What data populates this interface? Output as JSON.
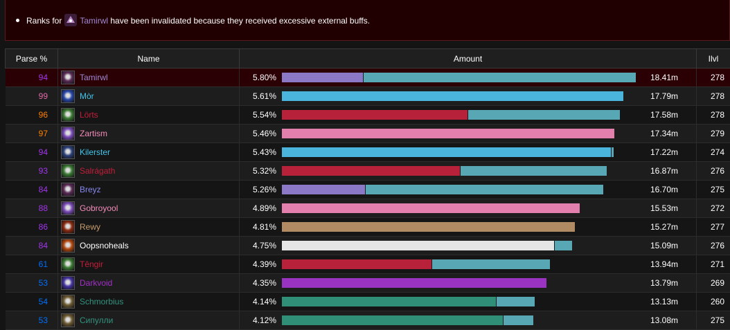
{
  "notice": {
    "prefix": "Ranks for",
    "player": "Tamirwl",
    "suffix": "have been invalidated because they received excessive external buffs."
  },
  "headers": {
    "parse": "Parse %",
    "name": "Name",
    "amount": "Amount",
    "ilvl": "Ilvl"
  },
  "colors": {
    "parse_purple": "#a335ee",
    "parse_pink": "#e268a8",
    "parse_orange": "#ff8000",
    "parse_blue": "#0070ff",
    "parse_orange2": "#ff8000",
    "mage": "#3fc7eb",
    "warlock": "#8788ee",
    "dh": "#a330c9",
    "dk": "#c41e3a",
    "evoker": "#33937f",
    "paladin": "#f48cba",
    "warrior": "#c69b6d",
    "priest": "#ffffff",
    "bar_secondary": "#58a7b4"
  },
  "rows": [
    {
      "parse": "94",
      "parse_color": "#a335ee",
      "icon": "spellbreaker-icon",
      "icon_color": "#5a2b57",
      "name": "Tamirwl",
      "name_color": "#a087d3",
      "pct": "5.80%",
      "primary_color": "#8b78c7",
      "primary_share": 0.23,
      "share": 0.954,
      "amount": "18.41m",
      "ilvl": "278",
      "flagged": true
    },
    {
      "parse": "99",
      "parse_color": "#e268a8",
      "icon": "frost-icon",
      "icon_color": "#2847a8",
      "name": "Mòr",
      "name_color": "#3fc7eb",
      "pct": "5.61%",
      "primary_color": "#4ab4dd",
      "primary_share": 1.0,
      "share": 0.922,
      "amount": "17.79m",
      "ilvl": "278"
    },
    {
      "parse": "96",
      "parse_color": "#ff8000",
      "icon": "skull-green-icon",
      "icon_color": "#3a7a32",
      "name": "Lörts",
      "name_color": "#c41e3a",
      "pct": "5.54%",
      "primary_color": "#b8213a",
      "primary_share": 0.55,
      "share": 0.911,
      "amount": "17.58m",
      "ilvl": "278"
    },
    {
      "parse": "97",
      "parse_color": "#ff8000",
      "icon": "purple-rune-icon",
      "icon_color": "#7a4bb8",
      "name": "Zartism",
      "name_color": "#f48cba",
      "pct": "5.46%",
      "primary_color": "#e27fad",
      "primary_share": 1.0,
      "share": 0.898,
      "amount": "17.34m",
      "ilvl": "279"
    },
    {
      "parse": "94",
      "parse_color": "#a335ee",
      "icon": "blade-icon",
      "icon_color": "#2b3f78",
      "name": "Kilerster",
      "name_color": "#3fc7eb",
      "pct": "5.43%",
      "primary_color": "#4ab4dd",
      "primary_share": 0.993,
      "share": 0.893,
      "amount": "17.22m",
      "ilvl": "274"
    },
    {
      "parse": "93",
      "parse_color": "#a335ee",
      "icon": "skull-green-icon",
      "icon_color": "#3a7a32",
      "name": "Salrágath",
      "name_color": "#c41e3a",
      "pct": "5.32%",
      "primary_color": "#b8213a",
      "primary_share": 0.55,
      "share": 0.874,
      "amount": "16.87m",
      "ilvl": "276"
    },
    {
      "parse": "84",
      "parse_color": "#a335ee",
      "icon": "spellbreaker-icon",
      "icon_color": "#5a2b57",
      "name": "Breyz",
      "name_color": "#8788ee",
      "pct": "5.26%",
      "primary_color": "#8b78c7",
      "primary_share": 0.26,
      "share": 0.865,
      "amount": "16.70m",
      "ilvl": "275"
    },
    {
      "parse": "88",
      "parse_color": "#a335ee",
      "icon": "purple-rune-icon",
      "icon_color": "#7a4bb8",
      "name": "Gobroyool",
      "name_color": "#f48cba",
      "pct": "4.89%",
      "primary_color": "#e27fad",
      "primary_share": 1.0,
      "share": 0.804,
      "amount": "15.53m",
      "ilvl": "272"
    },
    {
      "parse": "86",
      "parse_color": "#a335ee",
      "icon": "fury-icon",
      "icon_color": "#8a2a10",
      "name": "Rewy",
      "name_color": "#c69b6d",
      "pct": "4.81%",
      "primary_color": "#b08a62",
      "primary_share": 1.0,
      "share": 0.791,
      "amount": "15.27m",
      "ilvl": "277"
    },
    {
      "parse": "84",
      "parse_color": "#a335ee",
      "icon": "holy-icon",
      "icon_color": "#b34810",
      "name": "Oopsnoheals",
      "name_color": "#ffffff",
      "pct": "4.75%",
      "primary_color": "#e6e6e6",
      "primary_share": 0.94,
      "share": 0.781,
      "amount": "15.09m",
      "ilvl": "276"
    },
    {
      "parse": "61",
      "parse_color": "#0070ff",
      "icon": "skull-green-icon",
      "icon_color": "#3a7a32",
      "name": "Têngir",
      "name_color": "#c41e3a",
      "pct": "4.39%",
      "primary_color": "#b8213a",
      "primary_share": 0.56,
      "share": 0.722,
      "amount": "13.94m",
      "ilvl": "271"
    },
    {
      "parse": "53",
      "parse_color": "#0070ff",
      "icon": "void-icon",
      "icon_color": "#4433a0",
      "name": "Darkvoid",
      "name_color": "#a330c9",
      "pct": "4.35%",
      "primary_color": "#9b33c2",
      "primary_share": 1.0,
      "share": 0.714,
      "amount": "13.79m",
      "ilvl": "269"
    },
    {
      "parse": "54",
      "parse_color": "#0070ff",
      "icon": "evoker-icon",
      "icon_color": "#6d5a32",
      "name": "Schmorbius",
      "name_color": "#33937f",
      "pct": "4.14%",
      "primary_color": "#2f8f77",
      "primary_share": 0.85,
      "share": 0.68,
      "amount": "13.13m",
      "ilvl": "260"
    },
    {
      "parse": "53",
      "parse_color": "#0070ff",
      "icon": "evoker-icon",
      "icon_color": "#6d5a32",
      "name": "Сипулли",
      "name_color": "#33937f",
      "pct": "4.12%",
      "primary_color": "#2f8f77",
      "primary_share": 0.88,
      "share": 0.676,
      "amount": "13.08m",
      "ilvl": "275"
    }
  ]
}
